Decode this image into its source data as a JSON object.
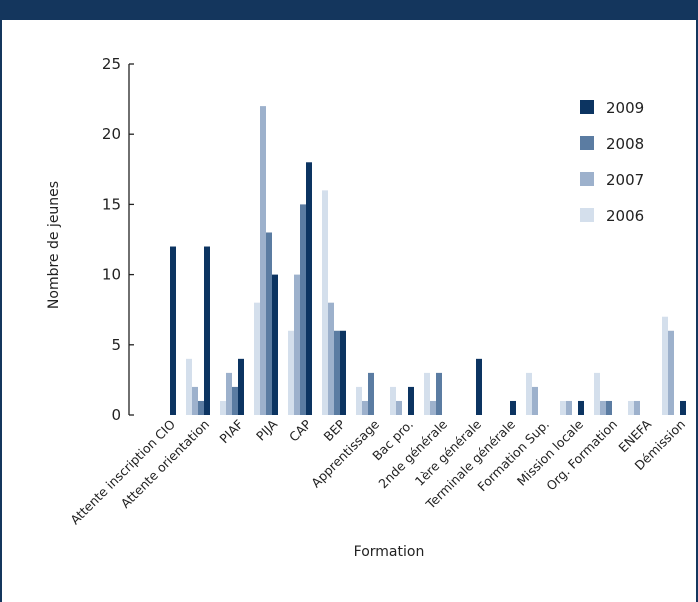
{
  "chart_data": {
    "type": "bar",
    "xlabel": "Formation",
    "ylabel": "Nombre de jeunes",
    "ylim": [
      0,
      25
    ],
    "yticks": [
      0,
      5,
      10,
      15,
      20,
      25
    ],
    "legend_position": "right",
    "categories": [
      "Attente inscription CIO",
      "Attente orientation",
      "PIAF",
      "PIJA",
      "CAP",
      "BEP",
      "Apprentissage",
      "Bac pro.",
      "2nde générale",
      "1ère générale",
      "Terminale générale",
      "Formation Sup.",
      "Mission locale",
      "Org. Formation",
      "ENEFA",
      "Démission"
    ],
    "series": [
      {
        "name": "2006",
        "color": "#d4dfec",
        "values": [
          0,
          4,
          1,
          8,
          6,
          16,
          2,
          2,
          3,
          0,
          0,
          3,
          1,
          3,
          1,
          7
        ]
      },
      {
        "name": "2007",
        "color": "#9db1cc",
        "values": [
          0,
          2,
          3,
          22,
          10,
          8,
          1,
          1,
          1,
          0,
          0,
          2,
          1,
          1,
          1,
          6
        ]
      },
      {
        "name": "2008",
        "color": "#5b7ca2",
        "values": [
          0,
          1,
          2,
          13,
          15,
          6,
          3,
          0,
          3,
          0,
          0,
          0,
          0,
          1,
          0,
          0
        ]
      },
      {
        "name": "2009",
        "color": "#0c3461",
        "values": [
          12,
          12,
          4,
          10,
          18,
          6,
          0,
          2,
          0,
          4,
          1,
          0,
          1,
          0,
          0,
          1
        ]
      }
    ],
    "legend_order": [
      "2009",
      "2008",
      "2007",
      "2006"
    ]
  }
}
